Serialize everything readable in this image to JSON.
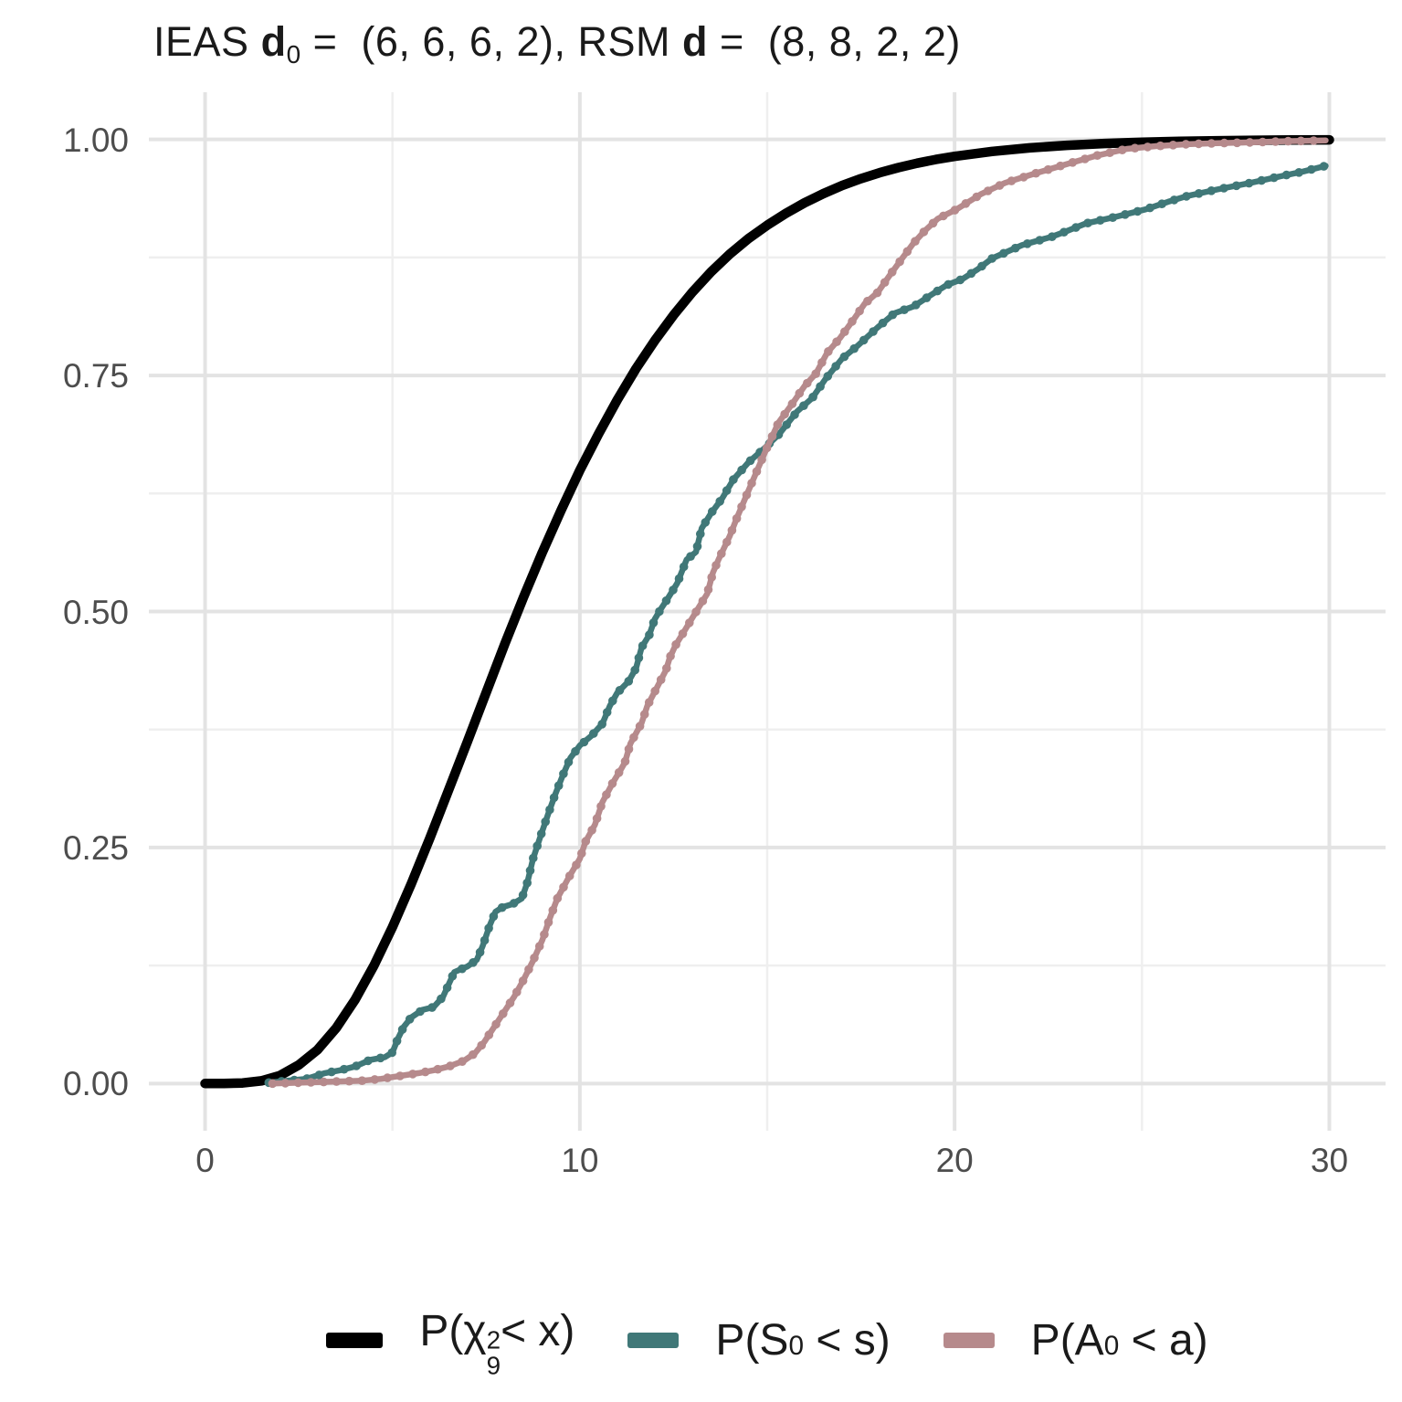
{
  "title": {
    "text": "IEAS d0 =  (6, 6, 6, 2), RSM d =  (8, 8, 2, 2)",
    "segments": [
      {
        "t": "IEAS "
      },
      {
        "b": "d"
      },
      {
        "sub": "0"
      },
      {
        "t": " =  (6, 6, 6, 2), RSM "
      },
      {
        "b": "d"
      },
      {
        "t": " =  (8, 8, 2, 2)"
      }
    ]
  },
  "axes": {
    "x": {
      "domain": [
        0,
        30
      ],
      "major_ticks": [
        {
          "v": 0,
          "label": "0"
        },
        {
          "v": 10,
          "label": "10"
        },
        {
          "v": 20,
          "label": "20"
        },
        {
          "v": 30,
          "label": "30"
        }
      ],
      "minor_ticks": [
        5,
        15,
        25
      ]
    },
    "y": {
      "domain": [
        0,
        1
      ],
      "major_ticks": [
        {
          "v": 0.0,
          "label": "0.00"
        },
        {
          "v": 0.25,
          "label": "0.25"
        },
        {
          "v": 0.5,
          "label": "0.50"
        },
        {
          "v": 0.75,
          "label": "0.75"
        },
        {
          "v": 1.0,
          "label": "1.00"
        }
      ],
      "minor_ticks": [
        0.125,
        0.375,
        0.625,
        0.875
      ]
    }
  },
  "style": {
    "background": "#ffffff",
    "major_grid_color": "#e3e3e3",
    "minor_grid_color": "#efefef",
    "tick_label_color": "#4d4d4d",
    "text_color": "#1a1a1a",
    "chi_color": "#000000",
    "s0_color": "#407878",
    "a0_color": "#b68a8c"
  },
  "legend": {
    "items": [
      {
        "key": "chi-square",
        "color": "#000000",
        "swatch_w": 62,
        "segments": [
          {
            "t": "P("
          },
          {
            "t": "χ"
          },
          {
            "supsub": [
              "2",
              "9"
            ]
          },
          {
            "t": "< x)"
          }
        ]
      },
      {
        "key": "s0",
        "color": "#407878",
        "swatch_w": 56,
        "segments": [
          {
            "t": "P(S"
          },
          {
            "sub": "0"
          },
          {
            "t": " < s)"
          }
        ]
      },
      {
        "key": "a0",
        "color": "#b68a8c",
        "swatch_w": 56,
        "segments": [
          {
            "t": "P(A"
          },
          {
            "sub": "0"
          },
          {
            "t": " < a)"
          }
        ]
      }
    ]
  },
  "chart_data": {
    "type": "line",
    "title": "IEAS d0 = (6, 6, 6, 2), RSM d = (8, 8, 2, 2)",
    "xlabel": "",
    "ylabel": "",
    "xlim": [
      0,
      30
    ],
    "ylim": [
      0,
      1
    ],
    "grid": "on",
    "legend_position": "bottom",
    "series": [
      {
        "name": "P(χ²₉ < x)",
        "kind": "chi-square-9-cdf",
        "color": "#000000",
        "style": "solid-thick",
        "points": [
          [
            0,
            0
          ],
          [
            0.5,
            0.0001
          ],
          [
            1,
            0.0006
          ],
          [
            1.5,
            0.0028
          ],
          [
            2,
            0.0085
          ],
          [
            2.5,
            0.0197
          ],
          [
            3,
            0.0357
          ],
          [
            3.5,
            0.0589
          ],
          [
            4,
            0.0886
          ],
          [
            4.5,
            0.1245
          ],
          [
            5,
            0.1657
          ],
          [
            5.5,
            0.2113
          ],
          [
            6,
            0.2601
          ],
          [
            6.5,
            0.311
          ],
          [
            7,
            0.3622
          ],
          [
            7.5,
            0.4142
          ],
          [
            8,
            0.4659
          ],
          [
            8.5,
            0.5154
          ],
          [
            9,
            0.5627
          ],
          [
            9.5,
            0.6072
          ],
          [
            10,
            0.6495
          ],
          [
            10.5,
            0.6882
          ],
          [
            11,
            0.7243
          ],
          [
            11.5,
            0.7573
          ],
          [
            12,
            0.7869
          ],
          [
            12.5,
            0.8138
          ],
          [
            13,
            0.838
          ],
          [
            13.5,
            0.8597
          ],
          [
            14,
            0.8786
          ],
          [
            14.5,
            0.895
          ],
          [
            15,
            0.9091
          ],
          [
            15.5,
            0.9217
          ],
          [
            16,
            0.9329
          ],
          [
            16.5,
            0.9426
          ],
          [
            17,
            0.9512
          ],
          [
            17.5,
            0.9585
          ],
          [
            18,
            0.9648
          ],
          [
            18.5,
            0.9702
          ],
          [
            19,
            0.9748
          ],
          [
            19.5,
            0.9788
          ],
          [
            20,
            0.9821
          ],
          [
            21,
            0.9873
          ],
          [
            22,
            0.9911
          ],
          [
            23,
            0.9938
          ],
          [
            24,
            0.9957
          ],
          [
            25,
            0.997
          ],
          [
            26,
            0.998
          ],
          [
            27,
            0.9986
          ],
          [
            28,
            0.9991
          ],
          [
            29,
            0.9994
          ],
          [
            30,
            0.9996
          ]
        ]
      },
      {
        "name": "P(S₀ < s)",
        "kind": "empirical-cdf",
        "color": "#407878",
        "style": "beaded",
        "points": [
          [
            1.7,
            0.001
          ],
          [
            2.2,
            0.003
          ],
          [
            2.7,
            0.005
          ],
          [
            3.2,
            0.011
          ],
          [
            3.6,
            0.014
          ],
          [
            4.0,
            0.018
          ],
          [
            4.4,
            0.025
          ],
          [
            4.8,
            0.028
          ],
          [
            5.0,
            0.033
          ],
          [
            5.15,
            0.048
          ],
          [
            5.3,
            0.06
          ],
          [
            5.5,
            0.07
          ],
          [
            5.8,
            0.078
          ],
          [
            6.1,
            0.081
          ],
          [
            6.35,
            0.092
          ],
          [
            6.5,
            0.105
          ],
          [
            6.65,
            0.118
          ],
          [
            7.0,
            0.124
          ],
          [
            7.25,
            0.131
          ],
          [
            7.4,
            0.145
          ],
          [
            7.6,
            0.168
          ],
          [
            7.75,
            0.182
          ],
          [
            7.95,
            0.187
          ],
          [
            8.2,
            0.19
          ],
          [
            8.45,
            0.196
          ],
          [
            8.6,
            0.213
          ],
          [
            8.75,
            0.238
          ],
          [
            8.95,
            0.262
          ],
          [
            9.15,
            0.285
          ],
          [
            9.35,
            0.307
          ],
          [
            9.55,
            0.327
          ],
          [
            9.75,
            0.345
          ],
          [
            10.0,
            0.358
          ],
          [
            10.3,
            0.368
          ],
          [
            10.6,
            0.381
          ],
          [
            10.8,
            0.4
          ],
          [
            11.0,
            0.414
          ],
          [
            11.3,
            0.426
          ],
          [
            11.5,
            0.44
          ],
          [
            11.65,
            0.462
          ],
          [
            11.85,
            0.475
          ],
          [
            12.0,
            0.492
          ],
          [
            12.15,
            0.502
          ],
          [
            12.35,
            0.514
          ],
          [
            12.6,
            0.53
          ],
          [
            12.85,
            0.555
          ],
          [
            13.1,
            0.563
          ],
          [
            13.25,
            0.588
          ],
          [
            13.5,
            0.604
          ],
          [
            13.8,
            0.62
          ],
          [
            14.1,
            0.64
          ],
          [
            14.5,
            0.658
          ],
          [
            14.9,
            0.672
          ],
          [
            15.3,
            0.687
          ],
          [
            15.8,
            0.712
          ],
          [
            16.2,
            0.726
          ],
          [
            16.55,
            0.746
          ],
          [
            17.0,
            0.768
          ],
          [
            17.4,
            0.781
          ],
          [
            17.95,
            0.801
          ],
          [
            18.4,
            0.816
          ],
          [
            18.9,
            0.823
          ],
          [
            19.4,
            0.836
          ],
          [
            19.8,
            0.846
          ],
          [
            20.2,
            0.852
          ],
          [
            20.6,
            0.862
          ],
          [
            21.0,
            0.874
          ],
          [
            21.8,
            0.888
          ],
          [
            22.6,
            0.897
          ],
          [
            23.0,
            0.903
          ],
          [
            23.5,
            0.911
          ],
          [
            24.3,
            0.918
          ],
          [
            25.1,
            0.926
          ],
          [
            25.7,
            0.934
          ],
          [
            26.2,
            0.94
          ],
          [
            27.0,
            0.947
          ],
          [
            27.9,
            0.954
          ],
          [
            28.7,
            0.961
          ],
          [
            29.3,
            0.966
          ],
          [
            29.9,
            0.972
          ]
        ]
      },
      {
        "name": "P(A₀ < a)",
        "kind": "empirical-cdf",
        "color": "#b68a8c",
        "style": "beaded",
        "points": [
          [
            1.8,
            0.0
          ],
          [
            2.6,
            0.001
          ],
          [
            3.4,
            0.002
          ],
          [
            4.2,
            0.003
          ],
          [
            4.7,
            0.005
          ],
          [
            5.2,
            0.008
          ],
          [
            5.7,
            0.011
          ],
          [
            6.1,
            0.014
          ],
          [
            6.5,
            0.018
          ],
          [
            6.9,
            0.024
          ],
          [
            7.2,
            0.032
          ],
          [
            7.45,
            0.044
          ],
          [
            7.65,
            0.056
          ],
          [
            7.85,
            0.068
          ],
          [
            8.05,
            0.08
          ],
          [
            8.25,
            0.092
          ],
          [
            8.5,
            0.11
          ],
          [
            8.75,
            0.13
          ],
          [
            9.0,
            0.152
          ],
          [
            9.2,
            0.175
          ],
          [
            9.4,
            0.196
          ],
          [
            9.7,
            0.218
          ],
          [
            10.0,
            0.238
          ],
          [
            10.15,
            0.256
          ],
          [
            10.4,
            0.274
          ],
          [
            10.6,
            0.298
          ],
          [
            10.9,
            0.32
          ],
          [
            11.1,
            0.333
          ],
          [
            11.2,
            0.34
          ],
          [
            11.35,
            0.36
          ],
          [
            11.65,
            0.382
          ],
          [
            11.8,
            0.4
          ],
          [
            12.05,
            0.419
          ],
          [
            12.3,
            0.438
          ],
          [
            12.4,
            0.451
          ],
          [
            12.55,
            0.464
          ],
          [
            12.8,
            0.48
          ],
          [
            13.0,
            0.493
          ],
          [
            13.2,
            0.506
          ],
          [
            13.4,
            0.519
          ],
          [
            13.55,
            0.541
          ],
          [
            13.7,
            0.555
          ],
          [
            14.0,
            0.58
          ],
          [
            14.2,
            0.6
          ],
          [
            14.5,
            0.628
          ],
          [
            14.75,
            0.651
          ],
          [
            15.0,
            0.674
          ],
          [
            15.3,
            0.7
          ],
          [
            15.65,
            0.719
          ],
          [
            16.0,
            0.739
          ],
          [
            16.3,
            0.752
          ],
          [
            16.6,
            0.774
          ],
          [
            16.95,
            0.79
          ],
          [
            17.3,
            0.809
          ],
          [
            17.6,
            0.826
          ],
          [
            17.95,
            0.838
          ],
          [
            18.25,
            0.855
          ],
          [
            18.6,
            0.874
          ],
          [
            18.9,
            0.89
          ],
          [
            19.2,
            0.903
          ],
          [
            19.55,
            0.916
          ],
          [
            20.05,
            0.926
          ],
          [
            20.7,
            0.942
          ],
          [
            21.35,
            0.954
          ],
          [
            22.15,
            0.964
          ],
          [
            23.0,
            0.974
          ],
          [
            23.8,
            0.983
          ],
          [
            24.6,
            0.99
          ],
          [
            25.4,
            0.993
          ],
          [
            26.2,
            0.995
          ],
          [
            27.0,
            0.996
          ],
          [
            28.0,
            0.997
          ],
          [
            28.7,
            0.998
          ],
          [
            29.9,
            0.999
          ]
        ]
      }
    ]
  }
}
